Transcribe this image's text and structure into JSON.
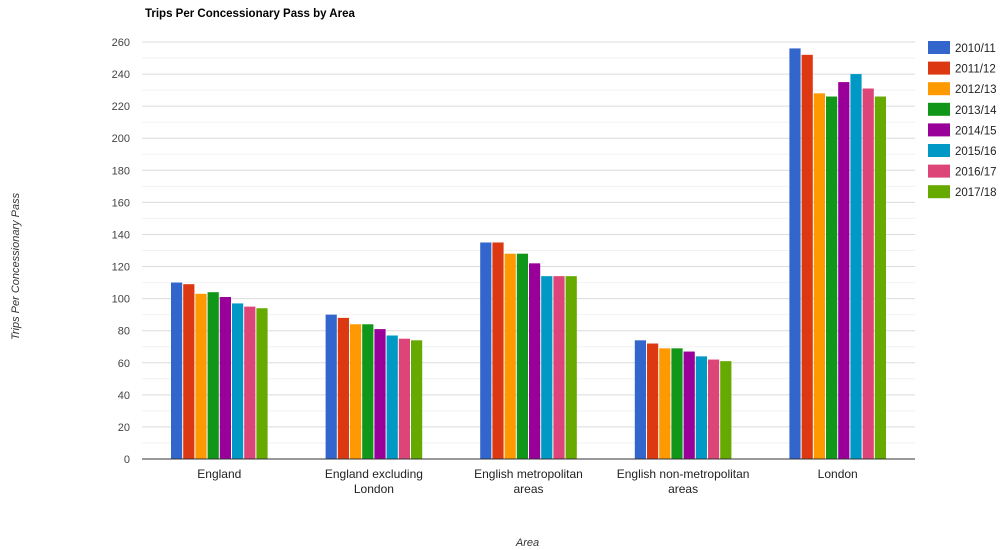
{
  "chart_data": {
    "type": "bar",
    "title": "Trips Per Concessionary Pass by Area",
    "xlabel": "Area",
    "ylabel": "Trips Per Concessionary Pass",
    "ylim": [
      0,
      260
    ],
    "yticks": [
      0,
      20,
      40,
      60,
      80,
      100,
      120,
      140,
      160,
      180,
      200,
      220,
      240,
      260
    ],
    "grid": true,
    "legend_position": "right",
    "categories": [
      [
        "England"
      ],
      [
        "England excluding",
        "London"
      ],
      [
        "English metropolitan",
        "areas"
      ],
      [
        "English non-metropolitan",
        "areas"
      ],
      [
        "London"
      ]
    ],
    "series": [
      {
        "name": "2010/11",
        "color": "#3366cc",
        "values": [
          110,
          90,
          135,
          74,
          256
        ]
      },
      {
        "name": "2011/12",
        "color": "#dc3912",
        "values": [
          109,
          88,
          135,
          72,
          252
        ]
      },
      {
        "name": "2012/13",
        "color": "#ff9900",
        "values": [
          103,
          84,
          128,
          69,
          228
        ]
      },
      {
        "name": "2013/14",
        "color": "#109618",
        "values": [
          104,
          84,
          128,
          69,
          226
        ]
      },
      {
        "name": "2014/15",
        "color": "#990099",
        "values": [
          101,
          81,
          122,
          67,
          235
        ]
      },
      {
        "name": "2015/16",
        "color": "#0099c6",
        "values": [
          97,
          77,
          114,
          64,
          240
        ]
      },
      {
        "name": "2016/17",
        "color": "#dd4477",
        "values": [
          95,
          75,
          114,
          62,
          231
        ]
      },
      {
        "name": "2017/18",
        "color": "#66aa00",
        "values": [
          94,
          74,
          114,
          61,
          226
        ]
      }
    ]
  }
}
